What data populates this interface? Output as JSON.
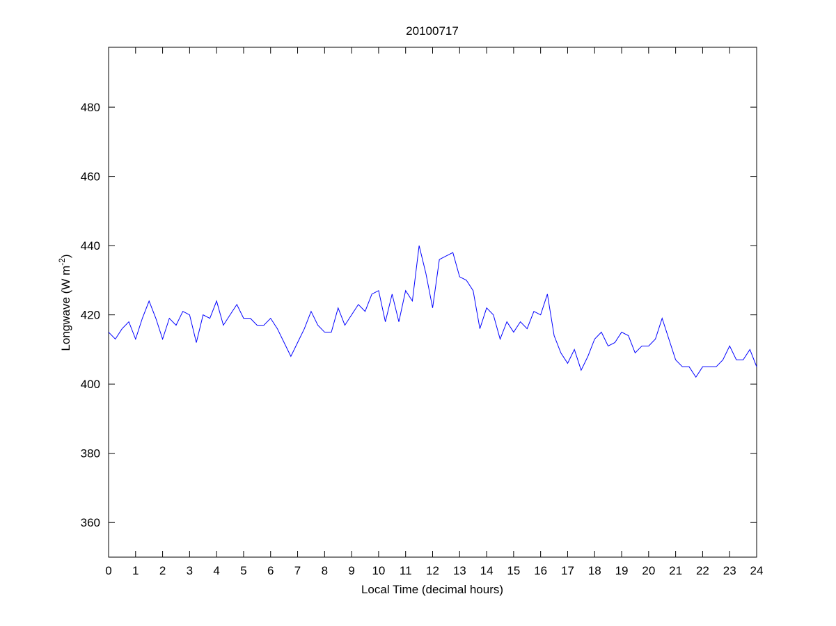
{
  "chart_data": {
    "type": "line",
    "title": "20100717",
    "xlabel": "Local Time (decimal hours)",
    "ylabel": {
      "text": "Longwave (W m",
      "sup": "-2",
      "tail": ")"
    },
    "x": [
      0,
      0.25,
      0.5,
      0.75,
      1,
      1.25,
      1.5,
      1.75,
      2,
      2.25,
      2.5,
      2.75,
      3,
      3.25,
      3.5,
      3.75,
      4,
      4.25,
      4.5,
      4.75,
      5,
      5.25,
      5.5,
      5.75,
      6,
      6.25,
      6.5,
      6.75,
      7,
      7.25,
      7.5,
      7.75,
      8,
      8.25,
      8.5,
      8.75,
      9,
      9.25,
      9.5,
      9.75,
      10,
      10.25,
      10.5,
      10.75,
      11,
      11.25,
      11.5,
      11.75,
      12,
      12.25,
      12.5,
      12.75,
      13,
      13.25,
      13.5,
      13.75,
      14,
      14.25,
      14.5,
      14.75,
      15,
      15.25,
      15.5,
      15.75,
      16,
      16.25,
      16.5,
      16.75,
      17,
      17.25,
      17.5,
      17.75,
      18,
      18.25,
      18.5,
      18.75,
      19,
      19.25,
      19.5,
      19.75,
      20,
      20.25,
      20.5,
      20.75,
      21,
      21.25,
      21.5,
      21.75,
      22,
      22.25,
      22.5,
      22.75,
      23,
      23.25,
      23.5,
      23.75,
      24
    ],
    "series": [
      {
        "name": "Longwave",
        "color": "#0000ff",
        "values": [
          415,
          413,
          416,
          418,
          413,
          419,
          424,
          419,
          413,
          419,
          417,
          421,
          420,
          412,
          420,
          419,
          424,
          417,
          420,
          423,
          419,
          419,
          417,
          417,
          419,
          416,
          412,
          408,
          412,
          416,
          421,
          417,
          415,
          415,
          422,
          417,
          420,
          423,
          421,
          426,
          427,
          418,
          426,
          418,
          427,
          424,
          440,
          432,
          422,
          436,
          437,
          438,
          431,
          430,
          427,
          416,
          422,
          420,
          413,
          418,
          415,
          418,
          416,
          421,
          420,
          426,
          414,
          409,
          406,
          410,
          404,
          408,
          413,
          415,
          411,
          412,
          415,
          414,
          409,
          411,
          411,
          413,
          419,
          413,
          407,
          405,
          405,
          402,
          405,
          405,
          405,
          407,
          411,
          407,
          407,
          410,
          405
        ]
      }
    ],
    "xlim": [
      0,
      24
    ],
    "ylim": [
      350,
      497.3
    ],
    "xticks": [
      0,
      1,
      2,
      3,
      4,
      5,
      6,
      7,
      8,
      9,
      10,
      11,
      12,
      13,
      14,
      15,
      16,
      17,
      18,
      19,
      20,
      21,
      22,
      23,
      24
    ],
    "yticks": [
      360,
      380,
      400,
      420,
      440,
      460,
      480
    ],
    "grid": false
  }
}
